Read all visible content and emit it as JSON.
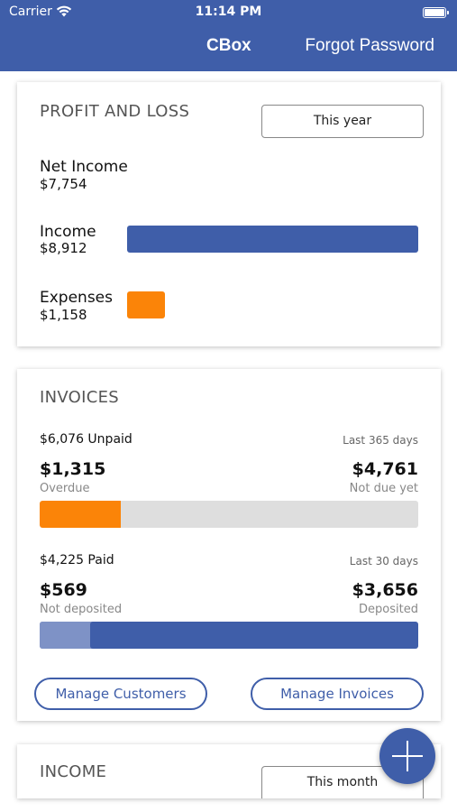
{
  "status_bar": {
    "carrier": "Carrier",
    "time": "11:14 PM"
  },
  "nav": {
    "title": "CBox",
    "forgot": "Forgot Password"
  },
  "profit_loss": {
    "title": "PROFIT AND LOSS",
    "period": "This year",
    "net_income_label": "Net Income",
    "net_income_value": "$7,754",
    "income_label": "Income",
    "income_value": "$8,912",
    "expenses_label": "Expenses",
    "expenses_value": "$1,158"
  },
  "invoices": {
    "title": "INVOICES",
    "unpaid_summary": "$6,076 Unpaid",
    "unpaid_range": "Last 365 days",
    "overdue_amount": "$1,315",
    "overdue_label": "Overdue",
    "not_due_amount": "$4,761",
    "not_due_label": "Not due yet",
    "paid_summary": "$4,225 Paid",
    "paid_range": "Last 30 days",
    "not_deposited_amount": "$569",
    "not_deposited_label": "Not deposited",
    "deposited_amount": "$3,656",
    "deposited_label": "Deposited",
    "manage_customers": "Manage Customers",
    "manage_invoices": "Manage Invoices"
  },
  "income": {
    "title": "INCOME",
    "period": "This month"
  },
  "fab": {
    "icon": "plus-icon"
  },
  "colors": {
    "brand": "#3f5ea9",
    "accent": "#fb8408",
    "track": "#dedede",
    "not_deposited": "#7e92c6"
  }
}
